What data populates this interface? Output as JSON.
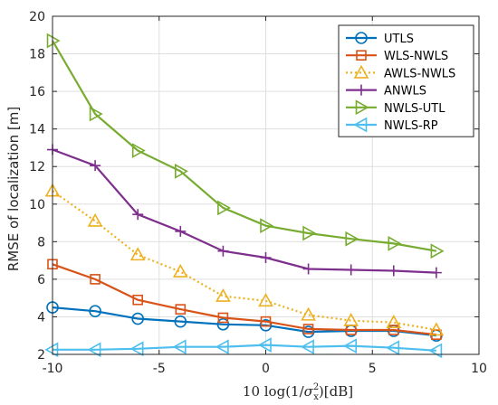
{
  "chart_data": {
    "type": "line",
    "x": [
      -10,
      -8,
      -6,
      -4,
      -2,
      0,
      2,
      4,
      6,
      8
    ],
    "xlim": [
      -10,
      10
    ],
    "ylim": [
      2,
      20
    ],
    "xticks": [
      -10,
      -5,
      0,
      5,
      10
    ],
    "yticks": [
      2,
      4,
      6,
      8,
      10,
      12,
      14,
      16,
      18,
      20
    ],
    "xlabel_parts": [
      "10 log(1/",
      "σ",
      "2",
      "x",
      ")[dB]"
    ],
    "ylabel": "RMSE of localization [m]",
    "grid": true,
    "legend_position": "top-right",
    "series": [
      {
        "name": "UTLS",
        "color": "#0072BD",
        "marker": "circle",
        "dash": "solid",
        "values": [
          4.5,
          4.3,
          3.9,
          3.75,
          3.6,
          3.55,
          3.2,
          3.25,
          3.25,
          3.0
        ]
      },
      {
        "name": "WLS-NWLS",
        "color": "#D95319",
        "marker": "square",
        "dash": "solid",
        "values": [
          6.8,
          6.0,
          4.9,
          4.4,
          3.95,
          3.75,
          3.35,
          3.3,
          3.3,
          3.05
        ]
      },
      {
        "name": "AWLS-NWLS",
        "color": "#EDB120",
        "marker": "triangle-up",
        "dash": "dotted",
        "values": [
          10.7,
          9.1,
          7.3,
          6.4,
          5.1,
          4.85,
          4.1,
          3.8,
          3.7,
          3.3
        ]
      },
      {
        "name": "ANWLS",
        "color": "#7E2F8E",
        "marker": "plus",
        "dash": "solid",
        "values": [
          12.9,
          12.05,
          9.45,
          8.55,
          7.5,
          7.15,
          6.55,
          6.5,
          6.45,
          6.35
        ]
      },
      {
        "name": "NWLS-UTL",
        "color": "#77AC30",
        "marker": "triangle-right",
        "dash": "solid",
        "values": [
          18.7,
          14.8,
          12.85,
          11.75,
          9.8,
          8.85,
          8.45,
          8.15,
          7.9,
          7.5
        ]
      },
      {
        "name": "NWLS-RP",
        "color": "#4DBEEE",
        "marker": "triangle-left",
        "dash": "solid",
        "values": [
          2.25,
          2.25,
          2.3,
          2.4,
          2.4,
          2.5,
          2.4,
          2.45,
          2.35,
          2.2
        ]
      }
    ]
  }
}
